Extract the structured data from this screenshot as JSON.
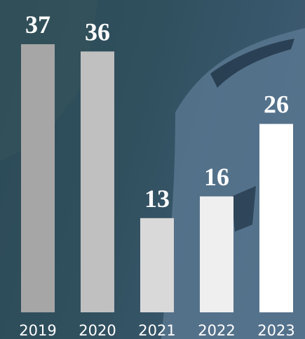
{
  "chart_data": {
    "type": "bar",
    "categories": [
      "2019",
      "2020",
      "2021",
      "2022",
      "2023"
    ],
    "values": [
      37,
      36,
      13,
      16,
      26
    ],
    "colors": [
      "#a6a6a6",
      "#c0c0c0",
      "#d9d9d9",
      "#efefef",
      "#ffffff"
    ]
  }
}
